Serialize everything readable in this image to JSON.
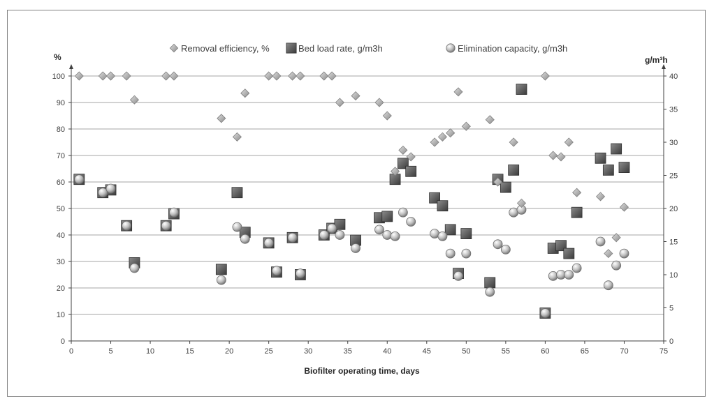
{
  "chart_data": {
    "type": "scatter",
    "xlabel": "Biofilter operating time, days",
    "y_left_unit": "%",
    "y_right_unit": "g/m³h",
    "xlim": [
      0,
      75
    ],
    "ylim_left": [
      0,
      100
    ],
    "ylim_right": [
      0,
      40
    ],
    "x_ticks": [
      "0",
      "5",
      "10",
      "15",
      "20",
      "25",
      "30",
      "35",
      "40",
      "45",
      "50",
      "55",
      "60",
      "65",
      "70",
      "75"
    ],
    "y_left_ticks": [
      "0",
      "10",
      "20",
      "30",
      "40",
      "50",
      "60",
      "70",
      "80",
      "90",
      "100"
    ],
    "y_right_ticks": [
      "0",
      "5",
      "10",
      "15",
      "20",
      "25",
      "30",
      "35",
      "40"
    ],
    "grid": "horizontal",
    "legend_position": "top",
    "series": [
      {
        "name": "Removal efficiency, %",
        "axis": "left",
        "marker": "diamond",
        "color": "#a6a6a6",
        "points": [
          [
            1,
            100
          ],
          [
            4,
            100
          ],
          [
            5,
            100
          ],
          [
            7,
            100
          ],
          [
            8,
            91
          ],
          [
            12,
            100
          ],
          [
            13,
            100
          ],
          [
            19,
            84
          ],
          [
            21,
            77
          ],
          [
            22,
            93.5
          ],
          [
            25,
            100
          ],
          [
            26,
            100
          ],
          [
            28,
            100
          ],
          [
            29,
            100
          ],
          [
            32,
            100
          ],
          [
            33,
            100
          ],
          [
            34,
            90
          ],
          [
            36,
            92.5
          ],
          [
            39,
            90
          ],
          [
            40,
            85
          ],
          [
            41,
            64
          ],
          [
            42,
            72
          ],
          [
            43,
            69.5
          ],
          [
            46,
            75
          ],
          [
            47,
            77
          ],
          [
            48,
            78.5
          ],
          [
            49,
            94
          ],
          [
            50,
            81
          ],
          [
            53,
            83.5
          ],
          [
            54,
            60
          ],
          [
            56,
            75
          ],
          [
            57,
            52
          ],
          [
            60,
            100
          ],
          [
            61,
            70
          ],
          [
            62,
            69.5
          ],
          [
            63,
            75
          ],
          [
            64,
            56
          ],
          [
            67,
            54.5
          ],
          [
            68,
            33
          ],
          [
            69,
            39
          ],
          [
            70,
            50.5
          ]
        ]
      },
      {
        "name": "Bed load rate, g/m3h",
        "axis": "right",
        "marker": "square",
        "color": "#595959",
        "points": [
          [
            1,
            24.4
          ],
          [
            4,
            22.4
          ],
          [
            5,
            22.8
          ],
          [
            7,
            17.4
          ],
          [
            8,
            11.8
          ],
          [
            12,
            17.4
          ],
          [
            13,
            19.2
          ],
          [
            19,
            10.8
          ],
          [
            21,
            22.4
          ],
          [
            22,
            16.4
          ],
          [
            25,
            14.8
          ],
          [
            26,
            10.4
          ],
          [
            28,
            15.6
          ],
          [
            29,
            10.0
          ],
          [
            32,
            16.0
          ],
          [
            33,
            17.0
          ],
          [
            34,
            17.6
          ],
          [
            36,
            15.2
          ],
          [
            39,
            18.6
          ],
          [
            40,
            18.8
          ],
          [
            41,
            24.4
          ],
          [
            42,
            26.8
          ],
          [
            43,
            25.6
          ],
          [
            46,
            21.6
          ],
          [
            47,
            20.4
          ],
          [
            48,
            16.8
          ],
          [
            49,
            10.2
          ],
          [
            50,
            16.2
          ],
          [
            53,
            8.8
          ],
          [
            54,
            24.4
          ],
          [
            55,
            23.2
          ],
          [
            56,
            25.8
          ],
          [
            57,
            38.0
          ],
          [
            60,
            4.2
          ],
          [
            61,
            14.0
          ],
          [
            62,
            14.4
          ],
          [
            63,
            13.2
          ],
          [
            64,
            19.4
          ],
          [
            67,
            27.6
          ],
          [
            68,
            25.8
          ],
          [
            69,
            29.0
          ],
          [
            70,
            26.2
          ]
        ]
      },
      {
        "name": "Elimination capacity, g/m3h",
        "axis": "right",
        "marker": "circle",
        "color": "#bfbfbf",
        "points": [
          [
            1,
            24.4
          ],
          [
            4,
            22.4
          ],
          [
            5,
            23.0
          ],
          [
            7,
            17.4
          ],
          [
            8,
            11.0
          ],
          [
            12,
            17.4
          ],
          [
            13,
            19.4
          ],
          [
            19,
            9.2
          ],
          [
            21,
            17.2
          ],
          [
            22,
            15.4
          ],
          [
            25,
            14.8
          ],
          [
            26,
            10.6
          ],
          [
            28,
            15.6
          ],
          [
            29,
            10.2
          ],
          [
            32,
            16.0
          ],
          [
            33,
            17.0
          ],
          [
            34,
            16.0
          ],
          [
            36,
            14.0
          ],
          [
            39,
            16.8
          ],
          [
            40,
            16.0
          ],
          [
            41,
            15.8
          ],
          [
            42,
            19.4
          ],
          [
            43,
            18.0
          ],
          [
            46,
            16.2
          ],
          [
            47,
            15.8
          ],
          [
            48,
            13.2
          ],
          [
            49,
            9.8
          ],
          [
            50,
            13.2
          ],
          [
            53,
            7.4
          ],
          [
            54,
            14.6
          ],
          [
            55,
            13.8
          ],
          [
            56,
            19.4
          ],
          [
            57,
            19.8
          ],
          [
            60,
            4.2
          ],
          [
            61,
            9.8
          ],
          [
            62,
            10.0
          ],
          [
            63,
            10.0
          ],
          [
            64,
            11.0
          ],
          [
            67,
            15.0
          ],
          [
            68,
            8.4
          ],
          [
            69,
            11.4
          ],
          [
            70,
            13.2
          ]
        ]
      }
    ]
  }
}
